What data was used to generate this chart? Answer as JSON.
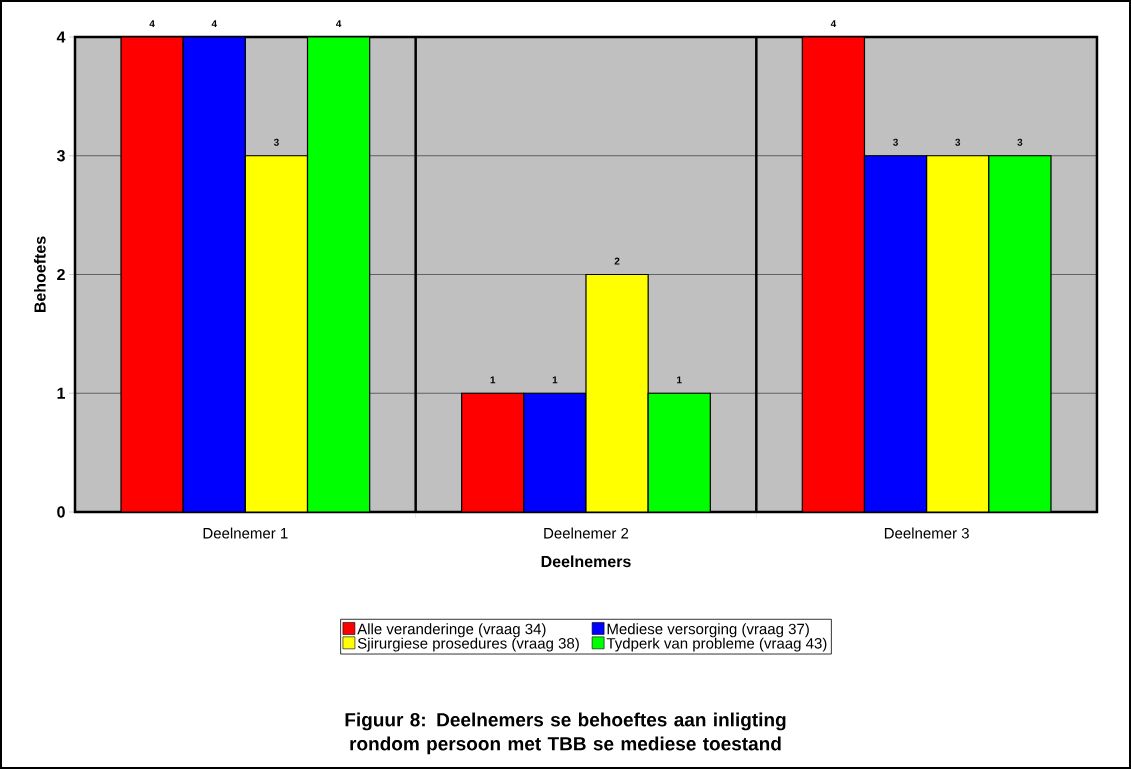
{
  "chart_data": {
    "type": "bar",
    "xlabel": "Deelnemers",
    "ylabel": "Behoeftes",
    "categories": [
      "Deelnemer 1",
      "Deelnemer 2",
      "Deelnemer 3"
    ],
    "series": [
      {
        "name": "Alle veranderinge (vraag 34)",
        "color": "#ff0000",
        "values": [
          4,
          1,
          4
        ]
      },
      {
        "name": "Mediese versorging (vraag 37)",
        "color": "#0000ff",
        "values": [
          4,
          1,
          3
        ]
      },
      {
        "name": "Sjirurgiese prosedures (vraag 38)",
        "color": "#ffff00",
        "values": [
          3,
          2,
          3
        ]
      },
      {
        "name": "Tydperk van probleme (vraag 43)",
        "color": "#00ff00",
        "values": [
          4,
          1,
          3
        ]
      }
    ],
    "ylim": [
      0,
      4
    ],
    "yticks": [
      0,
      1,
      2,
      3,
      4
    ],
    "grid": "y",
    "legend": "bottom",
    "data_labels": true,
    "annotations": [
      "Figuur 8:  Deelnemers se behoeftes aan inligting rondom persoon met TBB se mediese toestand"
    ]
  }
}
